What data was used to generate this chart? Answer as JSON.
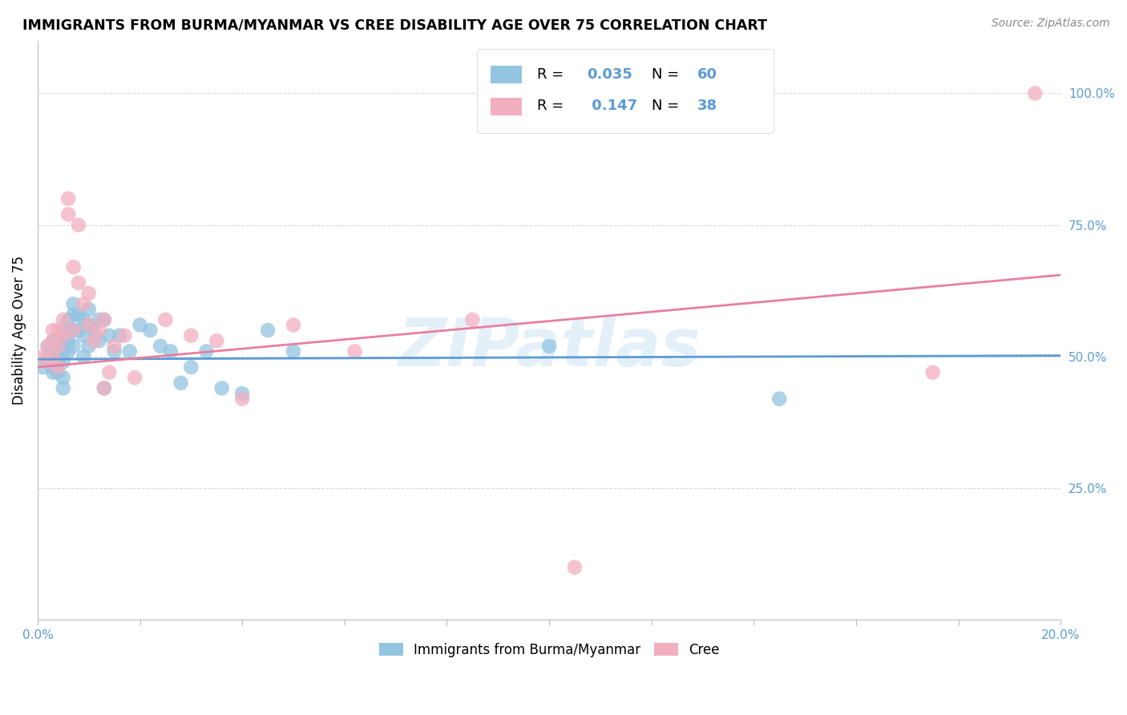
{
  "title": "IMMIGRANTS FROM BURMA/MYANMAR VS CREE DISABILITY AGE OVER 75 CORRELATION CHART",
  "source": "Source: ZipAtlas.com",
  "ylabel": "Disability Age Over 75",
  "y_tick_values": [
    1.0,
    0.75,
    0.5,
    0.25
  ],
  "y_tick_labels": [
    "100.0%",
    "75.0%",
    "50.0%",
    "25.0%"
  ],
  "xlim": [
    0.0,
    0.2
  ],
  "ylim": [
    0.0,
    1.1
  ],
  "color_blue": "#93c4e0",
  "color_pink": "#f2afc0",
  "color_blue_text": "#5b9bd5",
  "color_line_blue": "#5b9bd5",
  "color_line_pink": "#e87fa0",
  "watermark": "ZIPatlas",
  "background_color": "#ffffff",
  "grid_color": "#d8d8d8",
  "blue_scatter_x": [
    0.001,
    0.002,
    0.002,
    0.002,
    0.003,
    0.003,
    0.003,
    0.003,
    0.003,
    0.003,
    0.004,
    0.004,
    0.004,
    0.004,
    0.004,
    0.004,
    0.005,
    0.005,
    0.005,
    0.005,
    0.005,
    0.005,
    0.006,
    0.006,
    0.006,
    0.006,
    0.007,
    0.007,
    0.007,
    0.007,
    0.008,
    0.008,
    0.009,
    0.009,
    0.009,
    0.01,
    0.01,
    0.01,
    0.011,
    0.012,
    0.012,
    0.013,
    0.013,
    0.014,
    0.015,
    0.016,
    0.018,
    0.02,
    0.022,
    0.024,
    0.026,
    0.028,
    0.03,
    0.033,
    0.036,
    0.04,
    0.045,
    0.05,
    0.1,
    0.145
  ],
  "blue_scatter_y": [
    0.48,
    0.5,
    0.52,
    0.49,
    0.53,
    0.5,
    0.48,
    0.51,
    0.49,
    0.47,
    0.52,
    0.5,
    0.49,
    0.47,
    0.53,
    0.51,
    0.55,
    0.53,
    0.51,
    0.49,
    0.46,
    0.44,
    0.57,
    0.55,
    0.53,
    0.51,
    0.6,
    0.58,
    0.55,
    0.52,
    0.58,
    0.55,
    0.57,
    0.54,
    0.5,
    0.59,
    0.56,
    0.52,
    0.55,
    0.57,
    0.53,
    0.57,
    0.44,
    0.54,
    0.51,
    0.54,
    0.51,
    0.56,
    0.55,
    0.52,
    0.51,
    0.45,
    0.48,
    0.51,
    0.44,
    0.43,
    0.55,
    0.51,
    0.52,
    0.42
  ],
  "pink_scatter_x": [
    0.001,
    0.002,
    0.002,
    0.003,
    0.003,
    0.003,
    0.004,
    0.004,
    0.004,
    0.005,
    0.005,
    0.006,
    0.006,
    0.007,
    0.007,
    0.008,
    0.008,
    0.009,
    0.01,
    0.01,
    0.011,
    0.012,
    0.013,
    0.013,
    0.014,
    0.015,
    0.017,
    0.019,
    0.025,
    0.03,
    0.035,
    0.04,
    0.05,
    0.062,
    0.085,
    0.105,
    0.175,
    0.195
  ],
  "pink_scatter_y": [
    0.5,
    0.52,
    0.49,
    0.55,
    0.53,
    0.5,
    0.55,
    0.52,
    0.48,
    0.57,
    0.54,
    0.8,
    0.77,
    0.67,
    0.55,
    0.75,
    0.64,
    0.6,
    0.62,
    0.56,
    0.53,
    0.55,
    0.57,
    0.44,
    0.47,
    0.52,
    0.54,
    0.46,
    0.57,
    0.54,
    0.53,
    0.42,
    0.56,
    0.51,
    0.57,
    0.1,
    0.47,
    1.0
  ],
  "blue_line_x": [
    0.0,
    0.2
  ],
  "blue_line_y": [
    0.495,
    0.502
  ],
  "pink_line_x": [
    0.0,
    0.2
  ],
  "pink_line_y": [
    0.48,
    0.655
  ]
}
